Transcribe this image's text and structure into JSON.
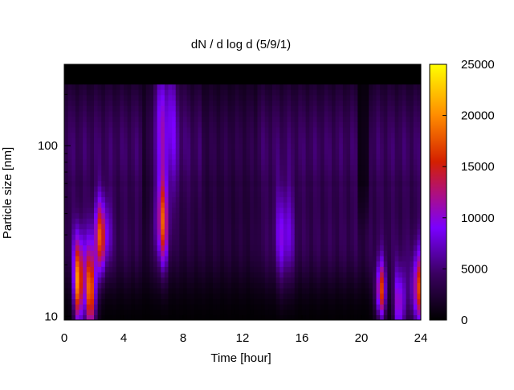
{
  "chart_data": {
    "type": "heatmap",
    "title": "dN / d log d (5/9/1)",
    "xlabel": "Time [hour]",
    "ylabel": "Particle size [nm]",
    "xlim": [
      0,
      24
    ],
    "ylim": [
      9.5,
      300
    ],
    "y_scale": "log",
    "x_ticks": [
      0,
      4,
      8,
      12,
      16,
      20,
      24
    ],
    "x_tick_labels": [
      "0",
      "4",
      "8",
      "12",
      "16",
      "20",
      "24"
    ],
    "y_ticks": [
      10,
      100
    ],
    "y_tick_labels": [
      "10",
      "100"
    ],
    "colorbar": {
      "range": [
        0,
        25000
      ],
      "ticks": [
        0,
        5000,
        10000,
        15000,
        20000,
        25000
      ],
      "tick_labels": [
        "0",
        "5000",
        "10000",
        "15000",
        "20000",
        "25000"
      ],
      "palette": "black-purple-red-orange-yellow"
    },
    "colors": {
      "c0": "#000000",
      "c1": "#3a0060",
      "c2": "#7a00ff",
      "c3": "#b0107a",
      "c4": "#d42000",
      "c5": "#ff8c00",
      "c6": "#ffff00"
    },
    "features": [
      {
        "t": 1.0,
        "d": 16,
        "v": 22000,
        "sd_t": 0.25,
        "sd_logd": 0.18
      },
      {
        "t": 1.8,
        "d": 14,
        "v": 20000,
        "sd_t": 0.25,
        "sd_logd": 0.18
      },
      {
        "t": 2.5,
        "d": 30,
        "v": 14000,
        "sd_t": 0.35,
        "sd_logd": 0.15
      },
      {
        "t": 6.6,
        "d": 35,
        "v": 14000,
        "sd_t": 0.3,
        "sd_logd": 0.18
      },
      {
        "t": 6.8,
        "d": 150,
        "v": 7000,
        "sd_t": 0.6,
        "sd_logd": 0.3
      },
      {
        "t": 14.8,
        "d": 30,
        "v": 7000,
        "sd_t": 0.4,
        "sd_logd": 0.2
      },
      {
        "t": 21.3,
        "d": 14,
        "v": 16000,
        "sd_t": 0.25,
        "sd_logd": 0.12
      },
      {
        "t": 22.6,
        "d": 12,
        "v": 13000,
        "sd_t": 0.3,
        "sd_logd": 0.15
      },
      {
        "t": 23.8,
        "d": 14,
        "v": 17000,
        "sd_t": 0.3,
        "sd_logd": 0.15
      }
    ]
  }
}
